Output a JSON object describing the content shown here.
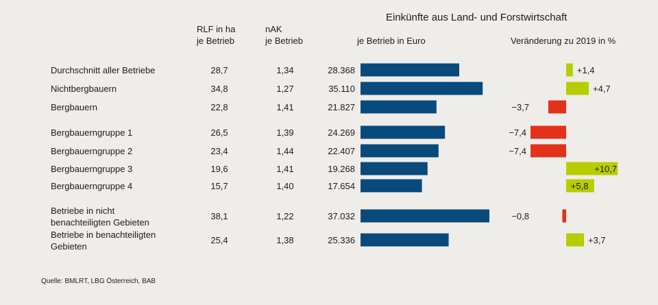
{
  "chart_data": {
    "type": "bar",
    "title": "Einkünfte aus Land- und Forstwirtschaft",
    "columns": {
      "rlf": [
        "RLF in ha",
        "je Betrieb"
      ],
      "nak": [
        "nAK",
        "je Betrieb"
      ],
      "income": "je Betrieb in Euro",
      "change": "Veränderung zu 2019 in %"
    },
    "rows": [
      {
        "label": [
          "Durchschnitt aller Betriebe"
        ],
        "rlf": "28,7",
        "nak": "1,34",
        "income_label": "28.368",
        "income": 28368,
        "change_label": "+1,4",
        "change": 1.4
      },
      {
        "label": [
          "Nichtbergbauern"
        ],
        "rlf": "34,8",
        "nak": "1,27",
        "income_label": "35.110",
        "income": 35110,
        "change_label": "+4,7",
        "change": 4.7
      },
      {
        "label": [
          "Bergbauern"
        ],
        "rlf": "22,8",
        "nak": "1,41",
        "income_label": "21.827",
        "income": 21827,
        "change_label": "−3,7",
        "change": -3.7
      },
      {
        "label": [
          "Bergbauerngruppe 1"
        ],
        "rlf": "26,5",
        "nak": "1,39",
        "income_label": "24.269",
        "income": 24269,
        "change_label": "−7,4",
        "change": -7.4
      },
      {
        "label": [
          "Bergbauerngruppe 2"
        ],
        "rlf": "23,4",
        "nak": "1,44",
        "income_label": "22.407",
        "income": 22407,
        "change_label": "−7,4",
        "change": -7.4
      },
      {
        "label": [
          "Bergbauerngruppe 3"
        ],
        "rlf": "19,6",
        "nak": "1,41",
        "income_label": "19.268",
        "income": 19268,
        "change_label": "+10,7",
        "change": 10.7
      },
      {
        "label": [
          "Bergbauerngruppe 4"
        ],
        "rlf": "15,7",
        "nak": "1,40",
        "income_label": "17.654",
        "income": 17654,
        "change_label": "+5,8",
        "change": 5.8
      },
      {
        "label": [
          "Betriebe in nicht",
          "benachteiligten Gebieten"
        ],
        "rlf": "38,1",
        "nak": "1,22",
        "income_label": "37.032",
        "income": 37032,
        "change_label": "−0,8",
        "change": -0.8
      },
      {
        "label": [
          "Betriebe in benachteiligten",
          "Gebieten"
        ],
        "rlf": "25,4",
        "nak": "1,38",
        "income_label": "25.336",
        "income": 25336,
        "change_label": "+3,7",
        "change": 3.7
      }
    ],
    "colors": {
      "income": "#084a7c",
      "positive": "#b7cd00",
      "negative": "#e2321b"
    }
  },
  "source": "Quelle: BMLRT, LBG Österreich, BAB"
}
